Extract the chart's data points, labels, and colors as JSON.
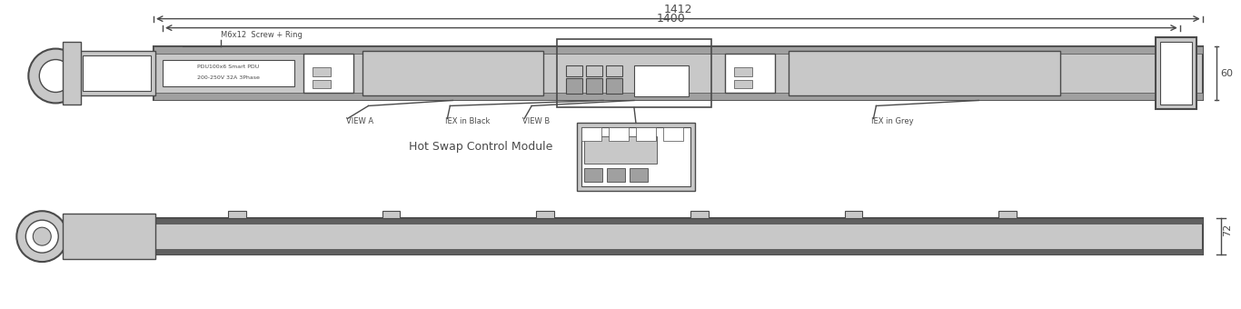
{
  "bg_color": "#ffffff",
  "line_color": "#4a4a4a",
  "light_gray": "#c8c8c8",
  "mid_gray": "#a0a0a0",
  "dark_gray": "#606060",
  "dim_1412": "1412",
  "dim_1400": "1400",
  "dim_60": "60",
  "dim_72": "72",
  "label_view_a": "VIEW A",
  "label_view_b": "VIEW B",
  "label_iex_black": "IEX in Black",
  "label_iex_grey": "IEX in Grey",
  "label_hotswap": "Hot Swap Control Module",
  "label_m6x12": "M6x12  Screw + Ring",
  "label_pdu": "PDU100x6 Smart PDU",
  "label_voltage": "200-250V 32A 3Phase"
}
